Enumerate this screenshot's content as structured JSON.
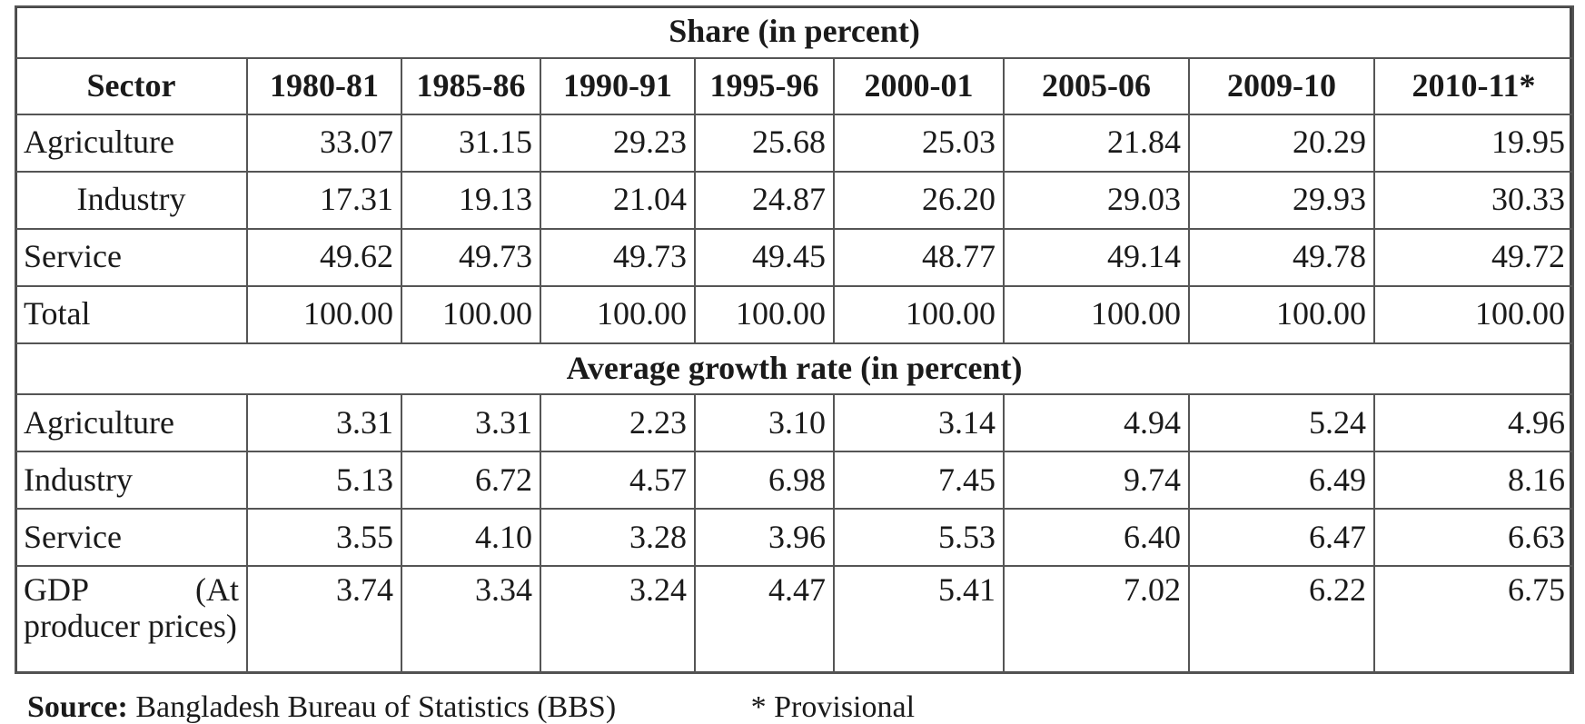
{
  "table": {
    "share_title": "Share (in percent)",
    "growth_title": "Average growth rate (in percent)",
    "sector_header": "Sector",
    "years": [
      "1980-81",
      "1985-86",
      "1990-91",
      "1995-96",
      "2000-01",
      "2005-06",
      "2009-10",
      "2010-11*"
    ],
    "share_rows": [
      {
        "label": "Agriculture",
        "values": [
          "33.07",
          "31.15",
          "29.23",
          "25.68",
          "25.03",
          "21.84",
          "20.29",
          "19.95"
        ]
      },
      {
        "label": "Industry",
        "values": [
          "17.31",
          "19.13",
          "21.04",
          "24.87",
          "26.20",
          "29.03",
          "29.93",
          "30.33"
        ]
      },
      {
        "label": "Service",
        "values": [
          "49.62",
          "49.73",
          "49.73",
          "49.45",
          "48.77",
          "49.14",
          "49.78",
          "49.72"
        ]
      },
      {
        "label": "Total",
        "values": [
          "100.00",
          "100.00",
          "100.00",
          "100.00",
          "100.00",
          "100.00",
          "100.00",
          "100.00"
        ]
      }
    ],
    "growth_rows": [
      {
        "label": "Agriculture",
        "values": [
          "3.31",
          "3.31",
          "2.23",
          "3.10",
          "3.14",
          "4.94",
          "5.24",
          "4.96"
        ]
      },
      {
        "label": "Industry",
        "values": [
          "5.13",
          "6.72",
          "4.57",
          "6.98",
          "7.45",
          "9.74",
          "6.49",
          "8.16"
        ]
      },
      {
        "label": "Service",
        "values": [
          "3.55",
          "4.10",
          "3.28",
          "3.96",
          "5.53",
          "6.40",
          "6.47",
          "6.63"
        ]
      },
      {
        "label_part1": "GDP",
        "label_part2": "(At",
        "label_part3": "producer prices)",
        "values": [
          "3.74",
          "3.34",
          "3.24",
          "4.47",
          "5.41",
          "7.02",
          "6.22",
          "6.75"
        ]
      }
    ]
  },
  "footer": {
    "source_label": "Source:",
    "source_text": "Bangladesh Bureau of Statistics (BBS)",
    "provisional_note": "* Provisional"
  }
}
